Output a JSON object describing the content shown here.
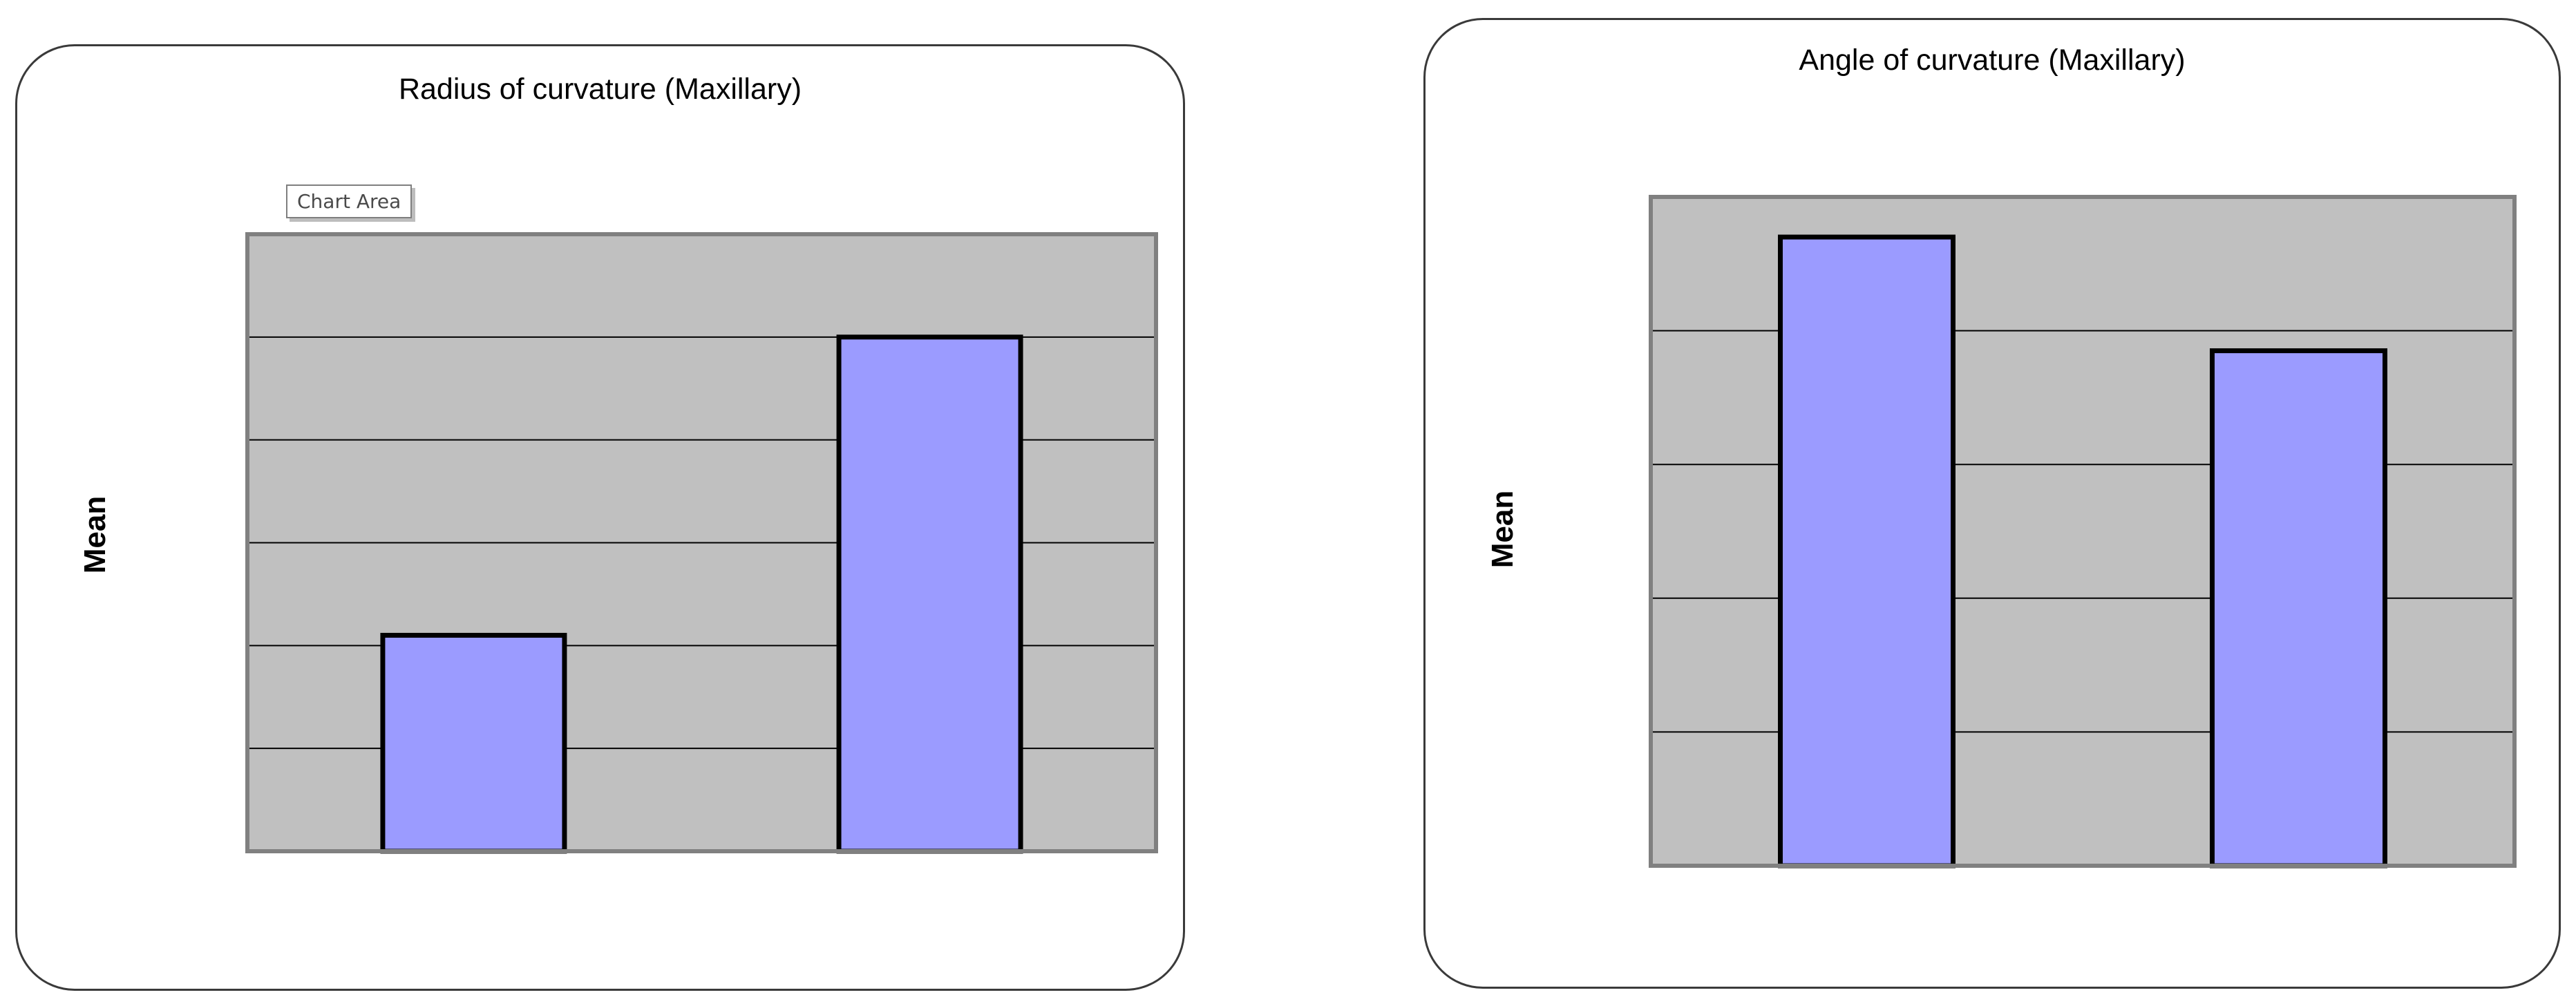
{
  "tooltip": {
    "text": "Chart Area"
  },
  "chart_data": [
    {
      "type": "bar",
      "title": "Radius of curvature (Maxillary)",
      "xlabel": "",
      "ylabel": "Mean",
      "categories": [
        "",
        ""
      ],
      "values": [
        2.1,
        5.0
      ],
      "ylim": [
        0,
        6
      ],
      "grid": true,
      "colors": {
        "bar_fill": "#9b9bff",
        "bar_stroke": "#000000",
        "plot_bg": "#c0c0c0",
        "plot_border": "#808080",
        "grid": "#000000"
      }
    },
    {
      "type": "bar",
      "title": "Angle of curvature (Maxillary)",
      "xlabel": "",
      "ylabel": "Mean",
      "categories": [
        "",
        ""
      ],
      "values": [
        4.7,
        3.85
      ],
      "ylim": [
        0,
        5
      ],
      "grid": true,
      "colors": {
        "bar_fill": "#9b9bff",
        "bar_stroke": "#000000",
        "plot_bg": "#c0c0c0",
        "plot_border": "#808080",
        "grid": "#000000"
      }
    }
  ]
}
